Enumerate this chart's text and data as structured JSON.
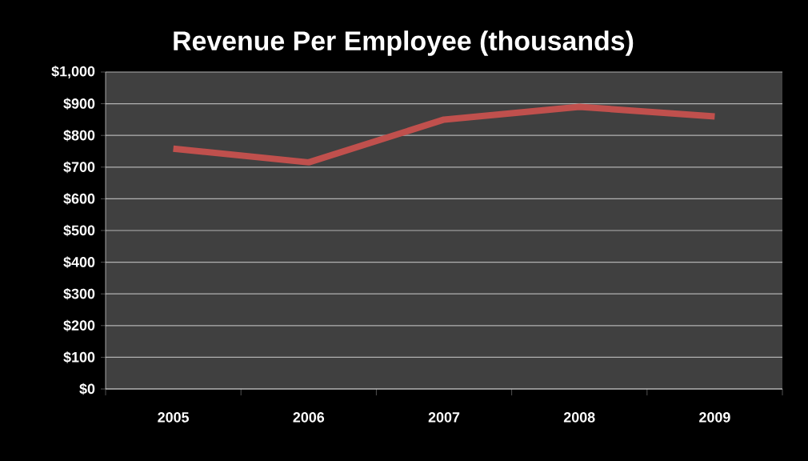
{
  "chart_data": {
    "type": "line",
    "title": "Revenue Per Employee (thousands)",
    "categories": [
      "2005",
      "2006",
      "2007",
      "2008",
      "2009"
    ],
    "series": [
      {
        "color": "#c0504d",
        "values": [
          758,
          715,
          850,
          890,
          860
        ]
      }
    ],
    "ylim": [
      0,
      1000
    ],
    "yticks": [
      {
        "value": 0,
        "label": "$0"
      },
      {
        "value": 100,
        "label": "$100"
      },
      {
        "value": 200,
        "label": "$200"
      },
      {
        "value": 300,
        "label": "$300"
      },
      {
        "value": 400,
        "label": "$400"
      },
      {
        "value": 500,
        "label": "$500"
      },
      {
        "value": 600,
        "label": "$600"
      },
      {
        "value": 700,
        "label": "$700"
      },
      {
        "value": 800,
        "label": "$800"
      },
      {
        "value": 900,
        "label": "$900"
      },
      {
        "value": 1000,
        "label": "$1,000"
      }
    ],
    "grid": "y",
    "marker": "none",
    "line_style": "solid"
  }
}
